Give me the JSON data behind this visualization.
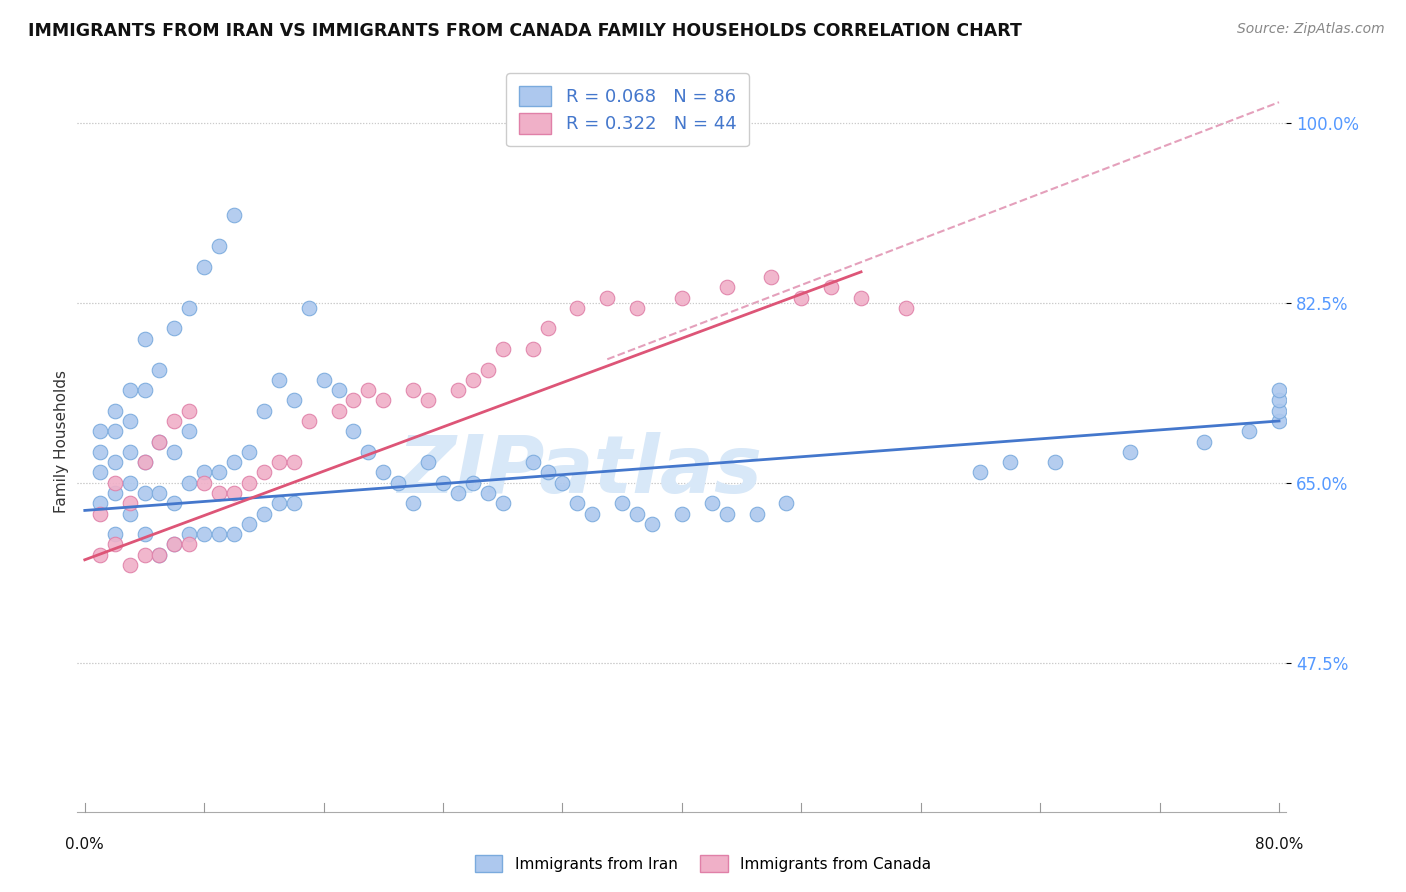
{
  "title": "IMMIGRANTS FROM IRAN VS IMMIGRANTS FROM CANADA FAMILY HOUSEHOLDS CORRELATION CHART",
  "source": "Source: ZipAtlas.com",
  "ylabel": "Family Households",
  "ytick_vals": [
    0.475,
    0.65,
    0.825,
    1.0
  ],
  "ytick_labels": [
    "47.5%",
    "65.0%",
    "82.5%",
    "100.0%"
  ],
  "xlim": [
    -0.005,
    0.805
  ],
  "ylim": [
    0.33,
    1.05
  ],
  "legend1_label": "R = 0.068   N = 86",
  "legend2_label": "R = 0.322   N = 44",
  "iran_color": "#adc8ee",
  "canada_color": "#f0b0c8",
  "iran_edge_color": "#7aaadd",
  "canada_edge_color": "#e080a8",
  "iran_line_color": "#4477cc",
  "canada_line_color": "#dd5577",
  "dashed_line_color": "#e090b0",
  "watermark": "ZIPatlas",
  "watermark_color": "#d8e8f8",
  "iran_trend": [
    0.0,
    0.8,
    0.623,
    0.71
  ],
  "canada_trend": [
    0.0,
    0.52,
    0.575,
    0.855
  ],
  "dashed_trend": [
    0.35,
    0.8,
    0.77,
    1.02
  ],
  "iran_x": [
    0.01,
    0.01,
    0.01,
    0.01,
    0.02,
    0.02,
    0.02,
    0.02,
    0.02,
    0.03,
    0.03,
    0.03,
    0.03,
    0.03,
    0.04,
    0.04,
    0.04,
    0.04,
    0.04,
    0.05,
    0.05,
    0.05,
    0.05,
    0.06,
    0.06,
    0.06,
    0.06,
    0.07,
    0.07,
    0.07,
    0.07,
    0.08,
    0.08,
    0.08,
    0.09,
    0.09,
    0.09,
    0.1,
    0.1,
    0.1,
    0.11,
    0.11,
    0.12,
    0.12,
    0.13,
    0.13,
    0.14,
    0.14,
    0.15,
    0.16,
    0.17,
    0.18,
    0.19,
    0.2,
    0.21,
    0.22,
    0.23,
    0.24,
    0.25,
    0.26,
    0.27,
    0.28,
    0.3,
    0.31,
    0.32,
    0.33,
    0.34,
    0.36,
    0.37,
    0.38,
    0.4,
    0.42,
    0.43,
    0.45,
    0.47,
    0.6,
    0.62,
    0.65,
    0.7,
    0.75,
    0.78,
    0.8,
    0.82,
    0.85,
    0.87
  ],
  "iran_y": [
    0.63,
    0.66,
    0.68,
    0.7,
    0.6,
    0.64,
    0.67,
    0.7,
    0.72,
    0.62,
    0.65,
    0.68,
    0.71,
    0.74,
    0.6,
    0.64,
    0.67,
    0.74,
    0.79,
    0.58,
    0.64,
    0.69,
    0.76,
    0.59,
    0.63,
    0.68,
    0.8,
    0.6,
    0.65,
    0.7,
    0.82,
    0.6,
    0.66,
    0.86,
    0.6,
    0.66,
    0.88,
    0.6,
    0.67,
    0.91,
    0.61,
    0.68,
    0.62,
    0.72,
    0.63,
    0.75,
    0.63,
    0.73,
    0.82,
    0.75,
    0.74,
    0.7,
    0.68,
    0.66,
    0.65,
    0.63,
    0.67,
    0.65,
    0.64,
    0.65,
    0.64,
    0.63,
    0.67,
    0.66,
    0.65,
    0.63,
    0.62,
    0.63,
    0.62,
    0.61,
    0.62,
    0.63,
    0.62,
    0.62,
    0.63,
    0.66,
    0.67,
    0.67,
    0.68,
    0.69,
    0.7,
    0.71,
    0.72,
    0.73,
    0.74
  ],
  "canada_x": [
    0.01,
    0.01,
    0.02,
    0.02,
    0.03,
    0.03,
    0.04,
    0.04,
    0.05,
    0.05,
    0.06,
    0.06,
    0.07,
    0.07,
    0.08,
    0.09,
    0.1,
    0.11,
    0.12,
    0.13,
    0.14,
    0.15,
    0.17,
    0.18,
    0.19,
    0.2,
    0.22,
    0.23,
    0.25,
    0.26,
    0.27,
    0.28,
    0.3,
    0.31,
    0.33,
    0.35,
    0.37,
    0.4,
    0.43,
    0.46,
    0.48,
    0.5,
    0.52,
    0.55
  ],
  "canada_y": [
    0.58,
    0.62,
    0.59,
    0.65,
    0.57,
    0.63,
    0.58,
    0.67,
    0.58,
    0.69,
    0.59,
    0.71,
    0.59,
    0.72,
    0.65,
    0.64,
    0.64,
    0.65,
    0.66,
    0.67,
    0.67,
    0.71,
    0.72,
    0.73,
    0.74,
    0.73,
    0.74,
    0.73,
    0.74,
    0.75,
    0.76,
    0.78,
    0.78,
    0.8,
    0.82,
    0.83,
    0.82,
    0.83,
    0.84,
    0.85,
    0.83,
    0.84,
    0.83,
    0.82
  ]
}
